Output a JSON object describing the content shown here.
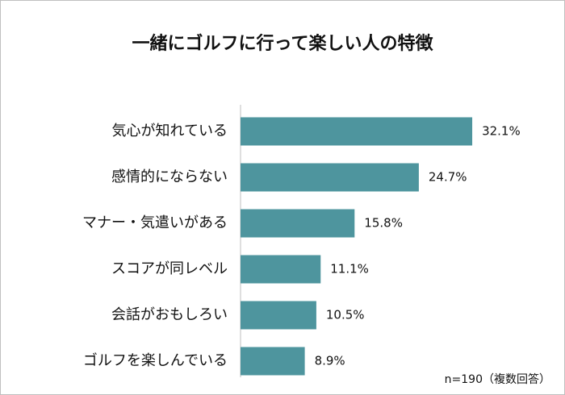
{
  "chart_data": {
    "type": "bar",
    "orientation": "horizontal",
    "title": "一緒にゴルフに行って楽しい人の特徴",
    "categories": [
      "気心が知れている",
      "感情的にならない",
      "マナー・気遣いがある",
      "スコアが同レベル",
      "会話がおもしろい",
      "ゴルフを楽しんでいる"
    ],
    "values": [
      32.1,
      24.7,
      15.8,
      11.1,
      10.5,
      8.9
    ],
    "value_labels": [
      "32.1%",
      "24.7%",
      "15.8%",
      "11.1%",
      "10.5%",
      "8.9%"
    ],
    "color": "#4e959e",
    "xlim": [
      0,
      35
    ],
    "note": "n=190（複数回答）"
  }
}
